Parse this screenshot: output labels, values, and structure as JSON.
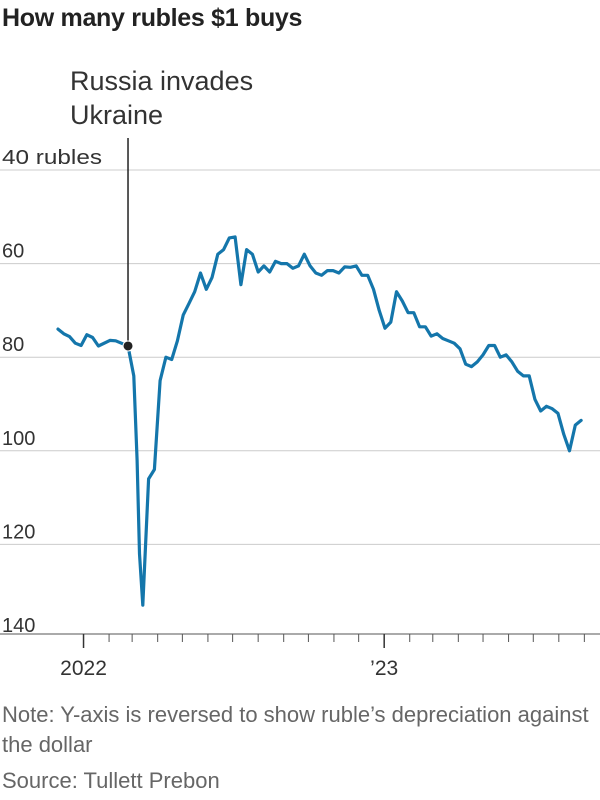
{
  "title": "How many rubles $1 buys",
  "annotation": {
    "line1": "Russia invades",
    "line2": "Ukraine"
  },
  "note": "Note: Y-axis is reversed to show ruble’s depreciation against the dollar",
  "source": "Source: Tullett Prebon",
  "colors": {
    "line": "#1476ab",
    "grid": "#cccccc",
    "axis": "#555555",
    "marker": "#222222"
  },
  "chart_data": {
    "type": "line",
    "title": "How many rubles $1 buys",
    "y_reversed": true,
    "ylim": [
      40,
      140
    ],
    "y_ticks": [
      {
        "value": 40,
        "label": "40 rubles"
      },
      {
        "value": 60,
        "label": "60"
      },
      {
        "value": 80,
        "label": "80"
      },
      {
        "value": 100,
        "label": "100"
      },
      {
        "value": 120,
        "label": "120"
      },
      {
        "value": 140,
        "label": "140"
      }
    ],
    "x_range": [
      "2021-12-01",
      "2023-09-20"
    ],
    "x_labels": [
      {
        "date": "2022-01-01",
        "label": "2022"
      },
      {
        "date": "2023-01-01",
        "label": "’23"
      }
    ],
    "x_minor_ticks": [
      "2022-02-01",
      "2022-03-01",
      "2022-04-01",
      "2022-05-01",
      "2022-06-01",
      "2022-07-01",
      "2022-08-01",
      "2022-09-01",
      "2022-10-01",
      "2022-11-01",
      "2022-12-01",
      "2023-02-01",
      "2023-03-01",
      "2023-04-01",
      "2023-05-01",
      "2023-06-01",
      "2023-07-01",
      "2023-08-01",
      "2023-09-01"
    ],
    "event": {
      "date": "2022-02-24",
      "value": 77.6,
      "label": "Russia invades Ukraine"
    },
    "series": [
      {
        "values": [
          [
            "2021-12-01",
            74.0
          ],
          [
            "2021-12-08",
            75.0
          ],
          [
            "2021-12-15",
            75.6
          ],
          [
            "2021-12-22",
            77.0
          ],
          [
            "2021-12-29",
            77.5
          ],
          [
            "2022-01-05",
            75.2
          ],
          [
            "2022-01-12",
            75.8
          ],
          [
            "2022-01-19",
            77.6
          ],
          [
            "2022-02-02",
            76.4
          ],
          [
            "2022-02-09",
            76.5
          ],
          [
            "2022-02-16",
            77.0
          ],
          [
            "2022-02-24",
            77.6
          ],
          [
            "2022-03-03",
            84.0
          ],
          [
            "2022-03-07",
            102.0
          ],
          [
            "2022-03-10",
            122.0
          ],
          [
            "2022-03-14",
            133.0
          ],
          [
            "2022-03-21",
            106.0
          ],
          [
            "2022-03-28",
            104.0
          ],
          [
            "2022-04-04",
            85.0
          ],
          [
            "2022-04-11",
            80.0
          ],
          [
            "2022-04-18",
            80.5
          ],
          [
            "2022-04-25",
            76.5
          ],
          [
            "2022-05-02",
            71.0
          ],
          [
            "2022-05-09",
            68.5
          ],
          [
            "2022-05-16",
            66.0
          ],
          [
            "2022-05-23",
            62.0
          ],
          [
            "2022-05-30",
            65.5
          ],
          [
            "2022-06-06",
            63.0
          ],
          [
            "2022-06-13",
            58.0
          ],
          [
            "2022-06-20",
            57.0
          ],
          [
            "2022-06-27",
            54.5
          ],
          [
            "2022-07-04",
            54.3
          ],
          [
            "2022-07-11",
            64.5
          ],
          [
            "2022-07-18",
            57.0
          ],
          [
            "2022-07-25",
            58.0
          ],
          [
            "2022-08-01",
            61.8
          ],
          [
            "2022-08-08",
            60.5
          ],
          [
            "2022-08-15",
            61.8
          ],
          [
            "2022-08-22",
            59.5
          ],
          [
            "2022-08-29",
            60.0
          ],
          [
            "2022-09-05",
            60.0
          ],
          [
            "2022-09-12",
            61.0
          ],
          [
            "2022-09-19",
            60.5
          ],
          [
            "2022-09-26",
            58.0
          ],
          [
            "2022-10-03",
            60.5
          ],
          [
            "2022-10-10",
            62.0
          ],
          [
            "2022-10-17",
            62.5
          ],
          [
            "2022-10-24",
            61.5
          ],
          [
            "2022-10-31",
            61.5
          ],
          [
            "2022-11-07",
            62.0
          ],
          [
            "2022-11-14",
            60.7
          ],
          [
            "2022-11-21",
            60.8
          ],
          [
            "2022-11-28",
            60.5
          ],
          [
            "2022-12-05",
            62.5
          ],
          [
            "2022-12-12",
            62.5
          ],
          [
            "2022-12-19",
            65.5
          ],
          [
            "2022-12-26",
            70.0
          ],
          [
            "2023-01-02",
            73.8
          ],
          [
            "2023-01-09",
            72.5
          ],
          [
            "2023-01-16",
            66.0
          ],
          [
            "2023-01-23",
            68.0
          ],
          [
            "2023-01-30",
            70.5
          ],
          [
            "2023-02-06",
            70.5
          ],
          [
            "2023-02-13",
            73.5
          ],
          [
            "2023-02-20",
            73.5
          ],
          [
            "2023-02-27",
            75.5
          ],
          [
            "2023-03-06",
            75.0
          ],
          [
            "2023-03-13",
            76.0
          ],
          [
            "2023-03-20",
            76.5
          ],
          [
            "2023-03-27",
            77.0
          ],
          [
            "2023-04-03",
            78.2
          ],
          [
            "2023-04-10",
            81.5
          ],
          [
            "2023-04-17",
            82.0
          ],
          [
            "2023-04-24",
            81.0
          ],
          [
            "2023-05-01",
            79.5
          ],
          [
            "2023-05-08",
            77.5
          ],
          [
            "2023-05-15",
            77.5
          ],
          [
            "2023-05-22",
            80.0
          ],
          [
            "2023-05-29",
            79.5
          ],
          [
            "2023-06-05",
            81.0
          ],
          [
            "2023-06-12",
            83.0
          ],
          [
            "2023-06-19",
            84.0
          ],
          [
            "2023-06-26",
            84.0
          ],
          [
            "2023-07-03",
            89.0
          ],
          [
            "2023-07-10",
            91.5
          ],
          [
            "2023-07-17",
            90.5
          ],
          [
            "2023-07-24",
            91.0
          ],
          [
            "2023-07-31",
            92.0
          ],
          [
            "2023-08-07",
            96.5
          ],
          [
            "2023-08-14",
            100.0
          ],
          [
            "2023-08-21",
            94.5
          ],
          [
            "2023-08-28",
            93.5
          ]
        ]
      }
    ]
  }
}
